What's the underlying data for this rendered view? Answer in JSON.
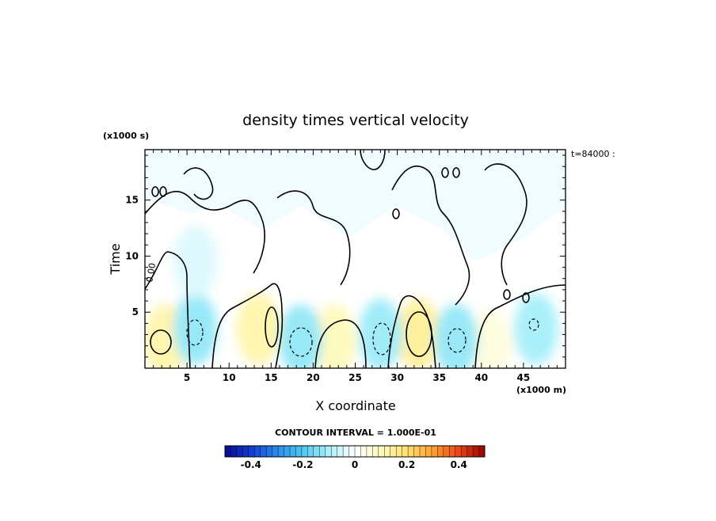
{
  "chart_data": {
    "type": "heatmap",
    "title": "density times vertical velocity",
    "xlabel": "X coordinate",
    "ylabel": "Time",
    "x_unit": "(x1000 m)",
    "y_unit": "(x1000 s)",
    "xlim": [
      0,
      50
    ],
    "ylim": [
      0,
      19.5
    ],
    "x_ticks": [
      5,
      10,
      15,
      20,
      25,
      30,
      35,
      40,
      45
    ],
    "y_ticks": [
      5,
      10,
      15
    ],
    "time_label": "t=84000 :",
    "contour_interval_text": "CONTOUR INTERVAL = 1.000E-01",
    "contour_interval": 0.1,
    "contour_zero_label": "0.00",
    "colorbar": {
      "min": -0.5,
      "max": 0.5,
      "tick_values": [
        -0.4,
        -0.2,
        0,
        0.2,
        0.4
      ],
      "tick_labels": [
        "-0.4",
        "-0.2",
        "0",
        "0.2",
        "0.4"
      ]
    },
    "positive_cells": [
      {
        "x": 2.5,
        "t": 2.5,
        "value": 0.12
      },
      {
        "x": 13.5,
        "t": 3.5,
        "value": 0.12
      },
      {
        "x": 22.5,
        "t": 2.5,
        "value": 0.1
      },
      {
        "x": 32.5,
        "t": 3.0,
        "value": 0.14
      },
      {
        "x": 41.0,
        "t": 2.0,
        "value": 0.05
      }
    ],
    "negative_cells": [
      {
        "x": 6.0,
        "t": 3.5,
        "value": -0.12
      },
      {
        "x": 18.5,
        "t": 2.5,
        "value": -0.12
      },
      {
        "x": 28.0,
        "t": 3.0,
        "value": -0.11
      },
      {
        "x": 37.0,
        "t": 2.5,
        "value": -0.12
      },
      {
        "x": 46.5,
        "t": 3.5,
        "value": -0.1
      },
      {
        "x": 6.0,
        "t": 9.5,
        "value": -0.04
      }
    ]
  }
}
